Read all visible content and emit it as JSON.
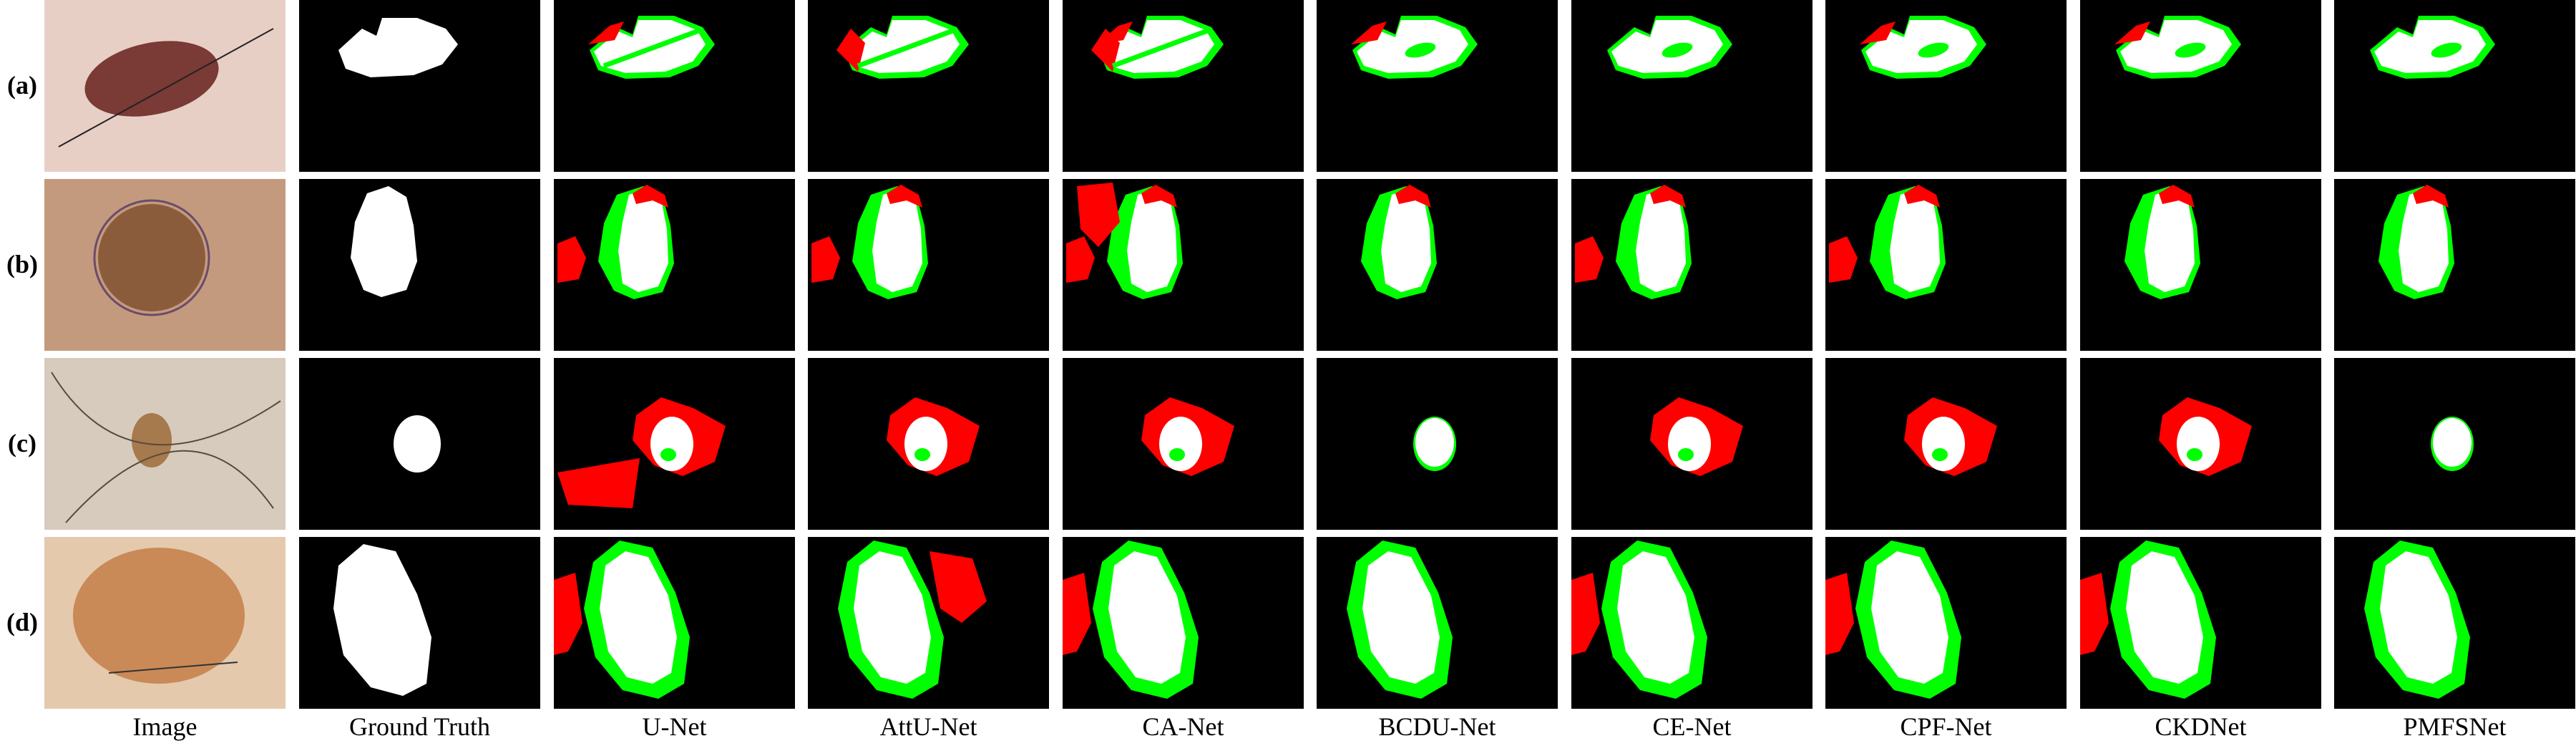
{
  "figure": {
    "row_labels": [
      "(a)",
      "(b)",
      "(c)",
      "(d)"
    ],
    "column_labels": [
      "Image",
      "Ground Truth",
      "U-Net",
      "AttU-Net",
      "CA-Net",
      "BCDU-Net",
      "CE-Net",
      "CPF-Net",
      "CKDNet",
      "PMFSNet"
    ],
    "colors": {
      "background": "#000000",
      "true_positive": "#ffffff",
      "false_positive": "#ff0000",
      "false_negative": "#00ff00"
    }
  }
}
